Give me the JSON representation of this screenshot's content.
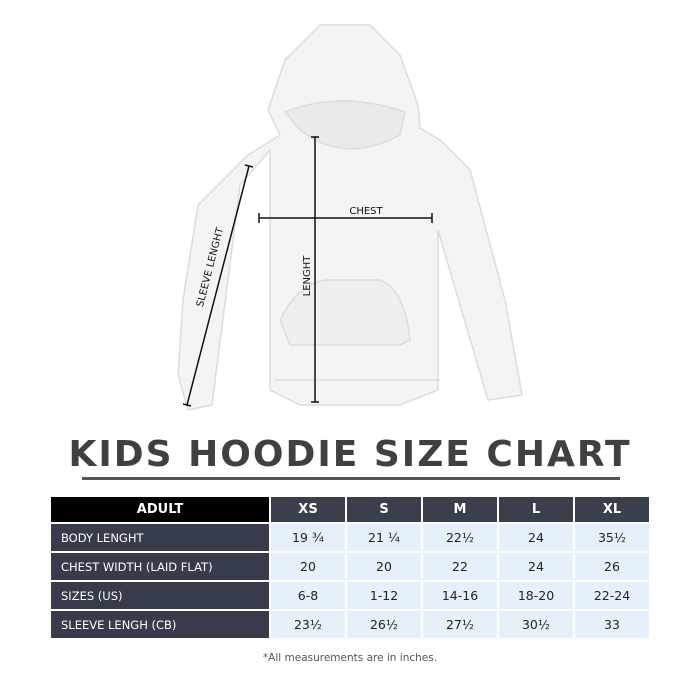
{
  "diagram": {
    "labels": {
      "chest": "CHEST",
      "length": "LENGHT",
      "sleeve": "SLEEVE LENGHT"
    }
  },
  "title": "KIDS HOODIE SIZE CHART",
  "table": {
    "corner": "ADULT",
    "sizes": [
      "XS",
      "S",
      "M",
      "L",
      "XL"
    ],
    "rows": [
      {
        "label": "BODY LENGHT",
        "values": [
          "19 ¾",
          "21 ¼",
          "22½",
          "24",
          "35½"
        ]
      },
      {
        "label": "CHEST WIDTH (LAID FLAT)",
        "values": [
          "20",
          "20",
          "22",
          "24",
          "26"
        ]
      },
      {
        "label": "SIZES (US)",
        "values": [
          "6-8",
          "1-12",
          "14-16",
          "18-20",
          "22-24"
        ]
      },
      {
        "label": "SLEEVE LENGH (CB)",
        "values": [
          "23½",
          "26½",
          "27½",
          "30½",
          "33"
        ]
      }
    ]
  },
  "note": "*All measurements are in inches.",
  "colors": {
    "header": "#3a3f4d",
    "corner": "#000000",
    "row_label": "#363c4b",
    "cell": "#e6f0fb",
    "title": "#404040"
  }
}
